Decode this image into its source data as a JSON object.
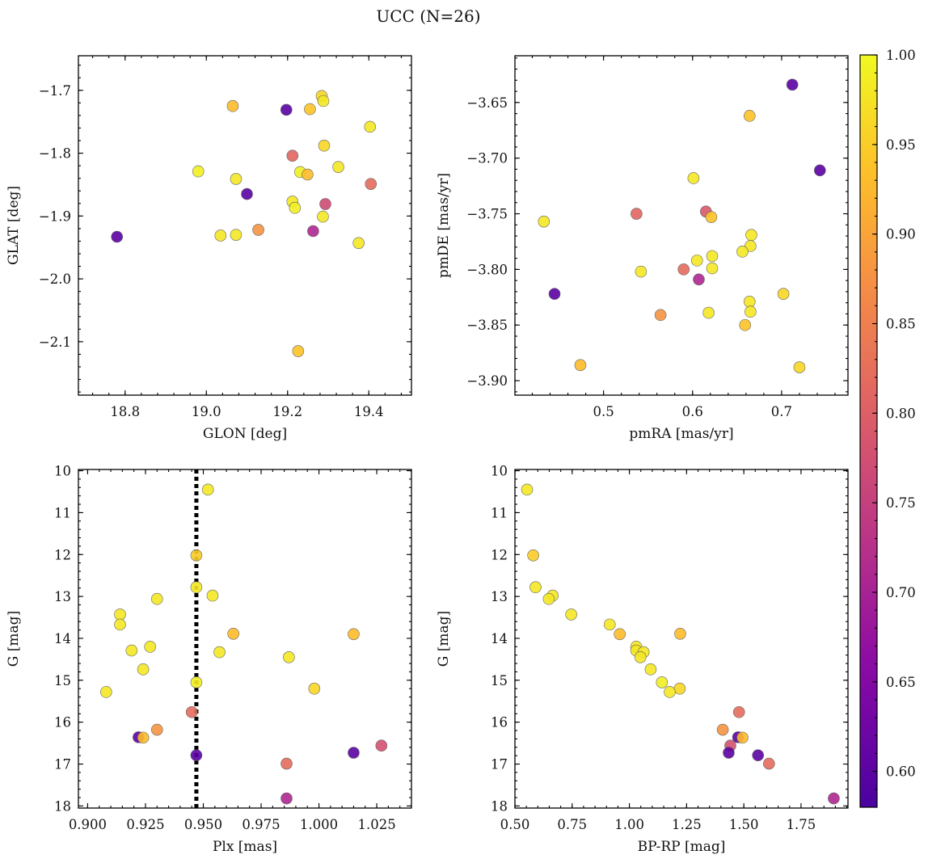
{
  "figure": {
    "title": "UCC (N=26)"
  },
  "colorbar": {
    "ticks": [
      0.6,
      0.65,
      0.7,
      0.75,
      0.8,
      0.85,
      0.9,
      0.95,
      1.0
    ],
    "tick_labels": [
      "0.60",
      "0.65",
      "0.70",
      "0.75",
      "0.80",
      "0.85",
      "0.90",
      "0.95",
      "1.00"
    ],
    "range": [
      0.58,
      1.0
    ],
    "colormap": "plasma",
    "colors": [
      "#0d0887",
      "#5402a3",
      "#8b0aa5",
      "#b93289",
      "#db5c68",
      "#f48849",
      "#febd2a",
      "#f0f921"
    ]
  },
  "chart_data": [
    {
      "type": "scatter",
      "id": "p1",
      "xlabel": "GLON [deg]",
      "ylabel": "GLAT [deg]",
      "xlim": [
        18.685,
        19.505
      ],
      "ylim": [
        -2.185,
        -1.645
      ],
      "y_inverted": false,
      "xticks": [
        18.8,
        19.0,
        19.2,
        19.4
      ],
      "xtick_labels": [
        "18.8",
        "19.0",
        "19.2",
        "19.4"
      ],
      "yticks": [
        -2.1,
        -2.0,
        -1.9,
        -1.8,
        -1.7
      ],
      "ytick_labels": [
        "−2.1",
        "−2.0",
        "−1.9",
        "−1.8",
        "−1.7"
      ],
      "vline": null,
      "points": [
        {
          "x": 18.78,
          "y": -1.933,
          "c": 0.6
        },
        {
          "x": 18.98,
          "y": -1.829,
          "c": 0.99
        },
        {
          "x": 19.035,
          "y": -1.931,
          "c": 0.98
        },
        {
          "x": 19.065,
          "y": -1.725,
          "c": 0.93
        },
        {
          "x": 19.073,
          "y": -1.841,
          "c": 0.98
        },
        {
          "x": 19.073,
          "y": -1.93,
          "c": 0.98
        },
        {
          "x": 19.1,
          "y": -1.865,
          "c": 0.6
        },
        {
          "x": 19.128,
          "y": -1.922,
          "c": 0.88
        },
        {
          "x": 19.197,
          "y": -1.731,
          "c": 0.6
        },
        {
          "x": 19.212,
          "y": -1.804,
          "c": 0.81
        },
        {
          "x": 19.212,
          "y": -1.877,
          "c": 0.98
        },
        {
          "x": 19.218,
          "y": -1.887,
          "c": 0.99
        },
        {
          "x": 19.226,
          "y": -2.115,
          "c": 0.94
        },
        {
          "x": 19.231,
          "y": -1.83,
          "c": 0.99
        },
        {
          "x": 19.249,
          "y": -1.834,
          "c": 0.93
        },
        {
          "x": 19.255,
          "y": -1.73,
          "c": 0.94
        },
        {
          "x": 19.263,
          "y": -1.924,
          "c": 0.71
        },
        {
          "x": 19.284,
          "y": -1.709,
          "c": 0.96
        },
        {
          "x": 19.287,
          "y": -1.901,
          "c": 0.98
        },
        {
          "x": 19.288,
          "y": -1.717,
          "c": 0.98
        },
        {
          "x": 19.29,
          "y": -1.788,
          "c": 0.96
        },
        {
          "x": 19.293,
          "y": -1.881,
          "c": 0.77
        },
        {
          "x": 19.325,
          "y": -1.822,
          "c": 0.98
        },
        {
          "x": 19.375,
          "y": -1.943,
          "c": 0.98
        },
        {
          "x": 19.403,
          "y": -1.758,
          "c": 0.98
        },
        {
          "x": 19.405,
          "y": -1.849,
          "c": 0.82
        }
      ]
    },
    {
      "type": "scatter",
      "id": "p2",
      "xlabel": "pmRA [mas/yr]",
      "ylabel": "pmDE [mas/yr]",
      "xlim": [
        0.4005,
        0.7745
      ],
      "ylim": [
        -3.913,
        -3.608
      ],
      "y_inverted": false,
      "xticks": [
        0.5,
        0.6,
        0.7
      ],
      "xtick_labels": [
        "0.5",
        "0.6",
        "0.7"
      ],
      "yticks": [
        -3.9,
        -3.85,
        -3.8,
        -3.75,
        -3.7,
        -3.65
      ],
      "ytick_labels": [
        "−3.90",
        "−3.85",
        "−3.80",
        "−3.75",
        "−3.70",
        "−3.65"
      ],
      "vline": null,
      "points": [
        {
          "x": 0.712,
          "y": -3.634,
          "c": 0.6
        },
        {
          "x": 0.664,
          "y": -3.662,
          "c": 0.94
        },
        {
          "x": 0.743,
          "y": -3.711,
          "c": 0.6
        },
        {
          "x": 0.601,
          "y": -3.718,
          "c": 0.98
        },
        {
          "x": 0.537,
          "y": -3.75,
          "c": 0.81
        },
        {
          "x": 0.615,
          "y": -3.748,
          "c": 0.79
        },
        {
          "x": 0.621,
          "y": -3.753,
          "c": 0.94
        },
        {
          "x": 0.433,
          "y": -3.757,
          "c": 0.98
        },
        {
          "x": 0.666,
          "y": -3.769,
          "c": 0.98
        },
        {
          "x": 0.665,
          "y": -3.779,
          "c": 0.98
        },
        {
          "x": 0.656,
          "y": -3.784,
          "c": 0.98
        },
        {
          "x": 0.622,
          "y": -3.788,
          "c": 0.98
        },
        {
          "x": 0.605,
          "y": -3.792,
          "c": 0.98
        },
        {
          "x": 0.622,
          "y": -3.799,
          "c": 0.98
        },
        {
          "x": 0.59,
          "y": -3.8,
          "c": 0.82
        },
        {
          "x": 0.542,
          "y": -3.802,
          "c": 0.98
        },
        {
          "x": 0.607,
          "y": -3.809,
          "c": 0.71
        },
        {
          "x": 0.445,
          "y": -3.822,
          "c": 0.6
        },
        {
          "x": 0.702,
          "y": -3.822,
          "c": 0.96
        },
        {
          "x": 0.664,
          "y": -3.829,
          "c": 0.98
        },
        {
          "x": 0.665,
          "y": -3.838,
          "c": 0.98
        },
        {
          "x": 0.618,
          "y": -3.839,
          "c": 0.98
        },
        {
          "x": 0.564,
          "y": -3.841,
          "c": 0.88
        },
        {
          "x": 0.659,
          "y": -3.85,
          "c": 0.94
        },
        {
          "x": 0.474,
          "y": -3.886,
          "c": 0.93
        },
        {
          "x": 0.72,
          "y": -3.888,
          "c": 0.96
        }
      ]
    },
    {
      "type": "scatter",
      "id": "p3",
      "xlabel": "Plx [mas]",
      "ylabel": "G [mag]",
      "xlim": [
        0.896,
        1.04
      ],
      "ylim": [
        9.97,
        18.05
      ],
      "y_inverted": true,
      "xticks": [
        0.9,
        0.925,
        0.95,
        0.975,
        1.0,
        1.025
      ],
      "xtick_labels": [
        "0.900",
        "0.925",
        "0.950",
        "0.975",
        "1.000",
        "1.025"
      ],
      "yticks": [
        10,
        11,
        12,
        13,
        14,
        15,
        16,
        17,
        18
      ],
      "ytick_labels": [
        "10",
        "11",
        "12",
        "13",
        "14",
        "15",
        "16",
        "17",
        "18"
      ],
      "vline": {
        "x": 0.947,
        "style": "dotted"
      },
      "points": [
        {
          "x": 0.952,
          "y": 10.45,
          "c": 0.98
        },
        {
          "x": 0.947,
          "y": 12.02,
          "c": 0.95
        },
        {
          "x": 0.947,
          "y": 12.78,
          "c": 0.98
        },
        {
          "x": 0.954,
          "y": 12.98,
          "c": 0.98
        },
        {
          "x": 0.93,
          "y": 13.06,
          "c": 0.98
        },
        {
          "x": 0.914,
          "y": 13.43,
          "c": 0.98
        },
        {
          "x": 0.914,
          "y": 13.67,
          "c": 0.98
        },
        {
          "x": 0.963,
          "y": 13.89,
          "c": 0.93
        },
        {
          "x": 1.015,
          "y": 13.9,
          "c": 0.93
        },
        {
          "x": 0.927,
          "y": 14.2,
          "c": 0.98
        },
        {
          "x": 0.919,
          "y": 14.29,
          "c": 0.98
        },
        {
          "x": 0.957,
          "y": 14.33,
          "c": 0.98
        },
        {
          "x": 0.987,
          "y": 14.45,
          "c": 0.98
        },
        {
          "x": 0.924,
          "y": 14.74,
          "c": 0.98
        },
        {
          "x": 0.947,
          "y": 15.05,
          "c": 0.99
        },
        {
          "x": 0.998,
          "y": 15.2,
          "c": 0.96
        },
        {
          "x": 0.908,
          "y": 15.28,
          "c": 0.98
        },
        {
          "x": 0.945,
          "y": 15.76,
          "c": 0.82
        },
        {
          "x": 0.93,
          "y": 16.18,
          "c": 0.88
        },
        {
          "x": 0.922,
          "y": 16.36,
          "c": 0.6
        },
        {
          "x": 0.924,
          "y": 16.37,
          "c": 0.93
        },
        {
          "x": 1.027,
          "y": 16.56,
          "c": 0.78
        },
        {
          "x": 1.015,
          "y": 16.73,
          "c": 0.6
        },
        {
          "x": 0.947,
          "y": 16.79,
          "c": 0.6
        },
        {
          "x": 0.986,
          "y": 16.99,
          "c": 0.82
        },
        {
          "x": 0.986,
          "y": 17.82,
          "c": 0.71
        }
      ]
    },
    {
      "type": "scatter",
      "id": "p4",
      "xlabel": "BP-RP [mag]",
      "ylabel": "G [mag]",
      "xlim": [
        0.5,
        1.955
      ],
      "ylim": [
        9.97,
        18.05
      ],
      "y_inverted": true,
      "xticks": [
        0.5,
        0.75,
        1.0,
        1.25,
        1.5,
        1.75
      ],
      "xtick_labels": [
        "0.50",
        "0.75",
        "1.00",
        "1.25",
        "1.50",
        "1.75"
      ],
      "yticks": [
        10,
        11,
        12,
        13,
        14,
        15,
        16,
        17,
        18
      ],
      "ytick_labels": [
        "10",
        "11",
        "12",
        "13",
        "14",
        "15",
        "16",
        "17",
        "18"
      ],
      "vline": null,
      "points": [
        {
          "x": 0.553,
          "y": 10.45,
          "c": 0.98
        },
        {
          "x": 0.58,
          "y": 12.02,
          "c": 0.95
        },
        {
          "x": 0.59,
          "y": 12.78,
          "c": 0.98
        },
        {
          "x": 0.665,
          "y": 12.98,
          "c": 0.98
        },
        {
          "x": 0.648,
          "y": 13.06,
          "c": 0.98
        },
        {
          "x": 0.746,
          "y": 13.43,
          "c": 0.98
        },
        {
          "x": 0.914,
          "y": 13.67,
          "c": 0.98
        },
        {
          "x": 1.222,
          "y": 13.89,
          "c": 0.93
        },
        {
          "x": 0.958,
          "y": 13.9,
          "c": 0.93
        },
        {
          "x": 1.03,
          "y": 14.2,
          "c": 0.98
        },
        {
          "x": 1.03,
          "y": 14.29,
          "c": 0.98
        },
        {
          "x": 1.062,
          "y": 14.33,
          "c": 0.98
        },
        {
          "x": 1.048,
          "y": 14.45,
          "c": 0.98
        },
        {
          "x": 1.093,
          "y": 14.74,
          "c": 0.98
        },
        {
          "x": 1.142,
          "y": 15.05,
          "c": 0.99
        },
        {
          "x": 1.22,
          "y": 15.2,
          "c": 0.96
        },
        {
          "x": 1.176,
          "y": 15.28,
          "c": 0.98
        },
        {
          "x": 1.479,
          "y": 15.76,
          "c": 0.82
        },
        {
          "x": 1.408,
          "y": 16.18,
          "c": 0.88
        },
        {
          "x": 1.475,
          "y": 16.36,
          "c": 0.6
        },
        {
          "x": 1.494,
          "y": 16.37,
          "c": 0.93
        },
        {
          "x": 1.441,
          "y": 16.56,
          "c": 0.78
        },
        {
          "x": 1.434,
          "y": 16.73,
          "c": 0.6
        },
        {
          "x": 1.562,
          "y": 16.79,
          "c": 0.6
        },
        {
          "x": 1.61,
          "y": 16.99,
          "c": 0.82
        },
        {
          "x": 1.893,
          "y": 17.82,
          "c": 0.71
        }
      ]
    }
  ]
}
